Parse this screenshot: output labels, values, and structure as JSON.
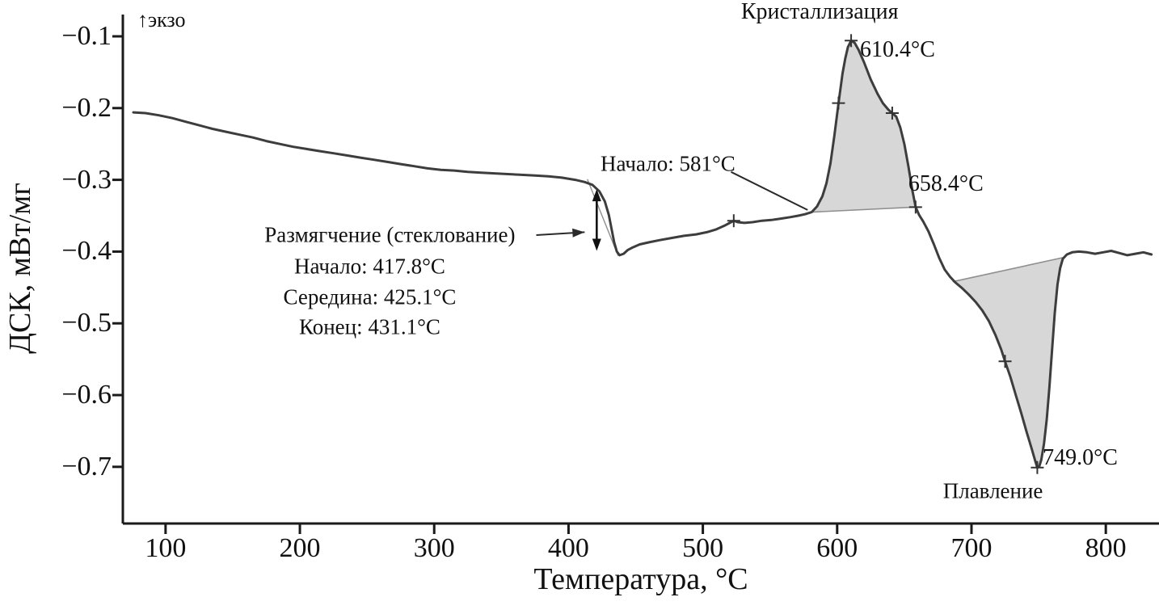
{
  "chart_data": {
    "type": "line",
    "title": "",
    "xlabel": "Температура, °C",
    "ylabel": "ДСК, мВт/мг",
    "x_range": [
      68.2,
      838.4
    ],
    "y_range": [
      -0.779,
      -0.0775
    ],
    "x_ticks": [
      {
        "v": 100,
        "label": "100"
      },
      {
        "v": 200,
        "label": "200"
      },
      {
        "v": 300,
        "label": "300"
      },
      {
        "v": 400,
        "label": "400"
      },
      {
        "v": 500,
        "label": "500"
      },
      {
        "v": 600,
        "label": "600"
      },
      {
        "v": 700,
        "label": "700"
      },
      {
        "v": 800,
        "label": "800"
      }
    ],
    "y_ticks": [
      {
        "v": -0.1,
        "label": "−0.1"
      },
      {
        "v": -0.2,
        "label": "−0.2"
      },
      {
        "v": -0.3,
        "label": "−0.3"
      },
      {
        "v": -0.4,
        "label": "−0.4"
      },
      {
        "v": -0.5,
        "label": "−0.5"
      },
      {
        "v": -0.6,
        "label": "−0.6"
      },
      {
        "v": -0.7,
        "label": "−0.7"
      }
    ],
    "series": [
      {
        "name": "ДСК",
        "points": [
          [
            76,
            -0.206
          ],
          [
            85,
            -0.207
          ],
          [
            95,
            -0.21
          ],
          [
            105,
            -0.214
          ],
          [
            115,
            -0.219
          ],
          [
            125,
            -0.224
          ],
          [
            135,
            -0.229
          ],
          [
            145,
            -0.233
          ],
          [
            155,
            -0.237
          ],
          [
            165,
            -0.241
          ],
          [
            175,
            -0.246
          ],
          [
            185,
            -0.25
          ],
          [
            195,
            -0.254
          ],
          [
            205,
            -0.257
          ],
          [
            215,
            -0.26
          ],
          [
            225,
            -0.263
          ],
          [
            235,
            -0.266
          ],
          [
            245,
            -0.269
          ],
          [
            255,
            -0.272
          ],
          [
            265,
            -0.275
          ],
          [
            275,
            -0.278
          ],
          [
            285,
            -0.281
          ],
          [
            295,
            -0.284
          ],
          [
            305,
            -0.286
          ],
          [
            315,
            -0.287
          ],
          [
            325,
            -0.289
          ],
          [
            335,
            -0.29
          ],
          [
            345,
            -0.291
          ],
          [
            355,
            -0.292
          ],
          [
            365,
            -0.293
          ],
          [
            375,
            -0.294
          ],
          [
            385,
            -0.295
          ],
          [
            395,
            -0.297
          ],
          [
            405,
            -0.3
          ],
          [
            412,
            -0.303
          ],
          [
            417.8,
            -0.307
          ],
          [
            423,
            -0.316
          ],
          [
            427,
            -0.33
          ],
          [
            430,
            -0.349
          ],
          [
            432,
            -0.368
          ],
          [
            434,
            -0.387
          ],
          [
            436,
            -0.4
          ],
          [
            438,
            -0.405
          ],
          [
            441,
            -0.403
          ],
          [
            444,
            -0.398
          ],
          [
            448,
            -0.394
          ],
          [
            453,
            -0.39
          ],
          [
            460,
            -0.387
          ],
          [
            468,
            -0.384
          ],
          [
            477,
            -0.381
          ],
          [
            486,
            -0.378
          ],
          [
            495,
            -0.376
          ],
          [
            503,
            -0.373
          ],
          [
            510,
            -0.369
          ],
          [
            516,
            -0.364
          ],
          [
            521,
            -0.359
          ],
          [
            523,
            -0.357
          ],
          [
            526,
            -0.359
          ],
          [
            531,
            -0.36
          ],
          [
            537,
            -0.359
          ],
          [
            544,
            -0.357
          ],
          [
            551,
            -0.356
          ],
          [
            558,
            -0.354
          ],
          [
            565,
            -0.352
          ],
          [
            571,
            -0.35
          ],
          [
            576,
            -0.348
          ],
          [
            581,
            -0.345
          ],
          [
            585,
            -0.337
          ],
          [
            589,
            -0.323
          ],
          [
            592,
            -0.305
          ],
          [
            595,
            -0.277
          ],
          [
            598,
            -0.237
          ],
          [
            601,
            -0.193
          ],
          [
            604,
            -0.152
          ],
          [
            606,
            -0.131
          ],
          [
            608,
            -0.115
          ],
          [
            610.4,
            -0.106
          ],
          [
            613,
            -0.109
          ],
          [
            616,
            -0.119
          ],
          [
            620,
            -0.136
          ],
          [
            625,
            -0.16
          ],
          [
            630,
            -0.18
          ],
          [
            634,
            -0.193
          ],
          [
            638,
            -0.202
          ],
          [
            641,
            -0.207
          ],
          [
            644,
            -0.212
          ],
          [
            647,
            -0.227
          ],
          [
            650,
            -0.25
          ],
          [
            653,
            -0.281
          ],
          [
            656,
            -0.315
          ],
          [
            658.4,
            -0.338
          ],
          [
            661,
            -0.349
          ],
          [
            664,
            -0.358
          ],
          [
            668,
            -0.372
          ],
          [
            672,
            -0.39
          ],
          [
            676,
            -0.409
          ],
          [
            680,
            -0.425
          ],
          [
            684,
            -0.435
          ],
          [
            688,
            -0.443
          ],
          [
            693,
            -0.451
          ],
          [
            698,
            -0.46
          ],
          [
            703,
            -0.47
          ],
          [
            708,
            -0.482
          ],
          [
            713,
            -0.497
          ],
          [
            718,
            -0.517
          ],
          [
            722,
            -0.536
          ],
          [
            725,
            -0.553
          ],
          [
            729,
            -0.575
          ],
          [
            733,
            -0.6
          ],
          [
            737,
            -0.625
          ],
          [
            741,
            -0.651
          ],
          [
            745,
            -0.676
          ],
          [
            747.5,
            -0.692
          ],
          [
            749,
            -0.701
          ],
          [
            750.5,
            -0.699
          ],
          [
            752,
            -0.69
          ],
          [
            754,
            -0.668
          ],
          [
            756,
            -0.634
          ],
          [
            758,
            -0.589
          ],
          [
            760,
            -0.537
          ],
          [
            762,
            -0.486
          ],
          [
            764,
            -0.446
          ],
          [
            766,
            -0.423
          ],
          [
            768,
            -0.41
          ],
          [
            771,
            -0.404
          ],
          [
            775,
            -0.401
          ],
          [
            780,
            -0.4
          ],
          [
            786,
            -0.401
          ],
          [
            792,
            -0.403
          ],
          [
            798,
            -0.401
          ],
          [
            804,
            -0.399
          ],
          [
            810,
            -0.402
          ],
          [
            816,
            -0.405
          ],
          [
            822,
            -0.403
          ],
          [
            828,
            -0.401
          ],
          [
            834,
            -0.404
          ]
        ]
      }
    ],
    "shaded_regions": [
      {
        "name": "crystallization-area",
        "from": 581,
        "to": 658.4,
        "baseline": [
          [
            581,
            -0.345
          ],
          [
            658.4,
            -0.338
          ]
        ]
      },
      {
        "name": "melting-area",
        "from": 686,
        "to": 769,
        "baseline": [
          [
            686,
            -0.442
          ],
          [
            769,
            -0.408
          ]
        ]
      }
    ],
    "markers": [
      [
        523,
        -0.357
      ],
      [
        601,
        -0.193
      ],
      [
        610.4,
        -0.106
      ],
      [
        641,
        -0.207
      ],
      [
        658.4,
        -0.338
      ],
      [
        725,
        -0.553
      ],
      [
        749,
        -0.701
      ]
    ],
    "glass_transition_arrow": {
      "t": 421,
      "v1": -0.313,
      "v2": -0.399
    },
    "aux_lines": [
      {
        "from": [
          414,
          -0.299
        ],
        "to": [
          437,
          -0.406
        ]
      }
    ],
    "leader_lines": [
      {
        "name": "cryst-onset-leader",
        "from": [
          521,
          -0.289
        ],
        "to": [
          578,
          -0.342
        ],
        "arrow": false
      },
      {
        "name": "softening-leader",
        "from": [
          376,
          -0.377
        ],
        "to": [
          412,
          -0.373
        ],
        "arrow": true
      }
    ],
    "annotations": {
      "exo": {
        "text": "↑экзо",
        "t": 79,
        "v": -0.0775,
        "anchor": "left",
        "size": 26
      },
      "crystallization_label": {
        "text": "Кристаллизация",
        "t": 587,
        "v": -0.066,
        "anchor": "center",
        "size": 28
      },
      "peak_temp": {
        "text": "610.4°C",
        "t": 617,
        "v": -0.119,
        "anchor": "left",
        "size": 28
      },
      "cryst_onset": {
        "text": "Начало: 581°C",
        "t": 474,
        "v": -0.278,
        "anchor": "center",
        "size": 27
      },
      "cryst_end_temp": {
        "text": "658.4°C",
        "t": 653,
        "v": -0.306,
        "anchor": "left",
        "size": 28
      },
      "softening_label": {
        "text": "Размягчение (стеклование)",
        "t": 267,
        "v": -0.377,
        "anchor": "center",
        "size": 27
      },
      "gt_onset": {
        "text": "Начало: 417.8°C",
        "t": 252,
        "v": -0.421,
        "anchor": "center",
        "size": 27
      },
      "gt_mid": {
        "text": "Середина: 425.1°C",
        "t": 252,
        "v": -0.464,
        "anchor": "center",
        "size": 27
      },
      "gt_end": {
        "text": "Конец: 431.1°C",
        "t": 252,
        "v": -0.505,
        "anchor": "center",
        "size": 27
      },
      "melt_temp": {
        "text": "749.0°C",
        "t": 753,
        "v": -0.688,
        "anchor": "left",
        "size": 28
      },
      "melting_label": {
        "text": "Плавление",
        "t": 716,
        "v": -0.734,
        "anchor": "center",
        "size": 27
      }
    },
    "colors": {
      "curve": "#3d3d3d",
      "fill": "#d7d7d7",
      "baseline": "#8f8f8f",
      "axis": "#1a1a1a",
      "marker": "#333333",
      "annotation_line": "#2a2a2a"
    },
    "legend": null,
    "grid": false
  }
}
